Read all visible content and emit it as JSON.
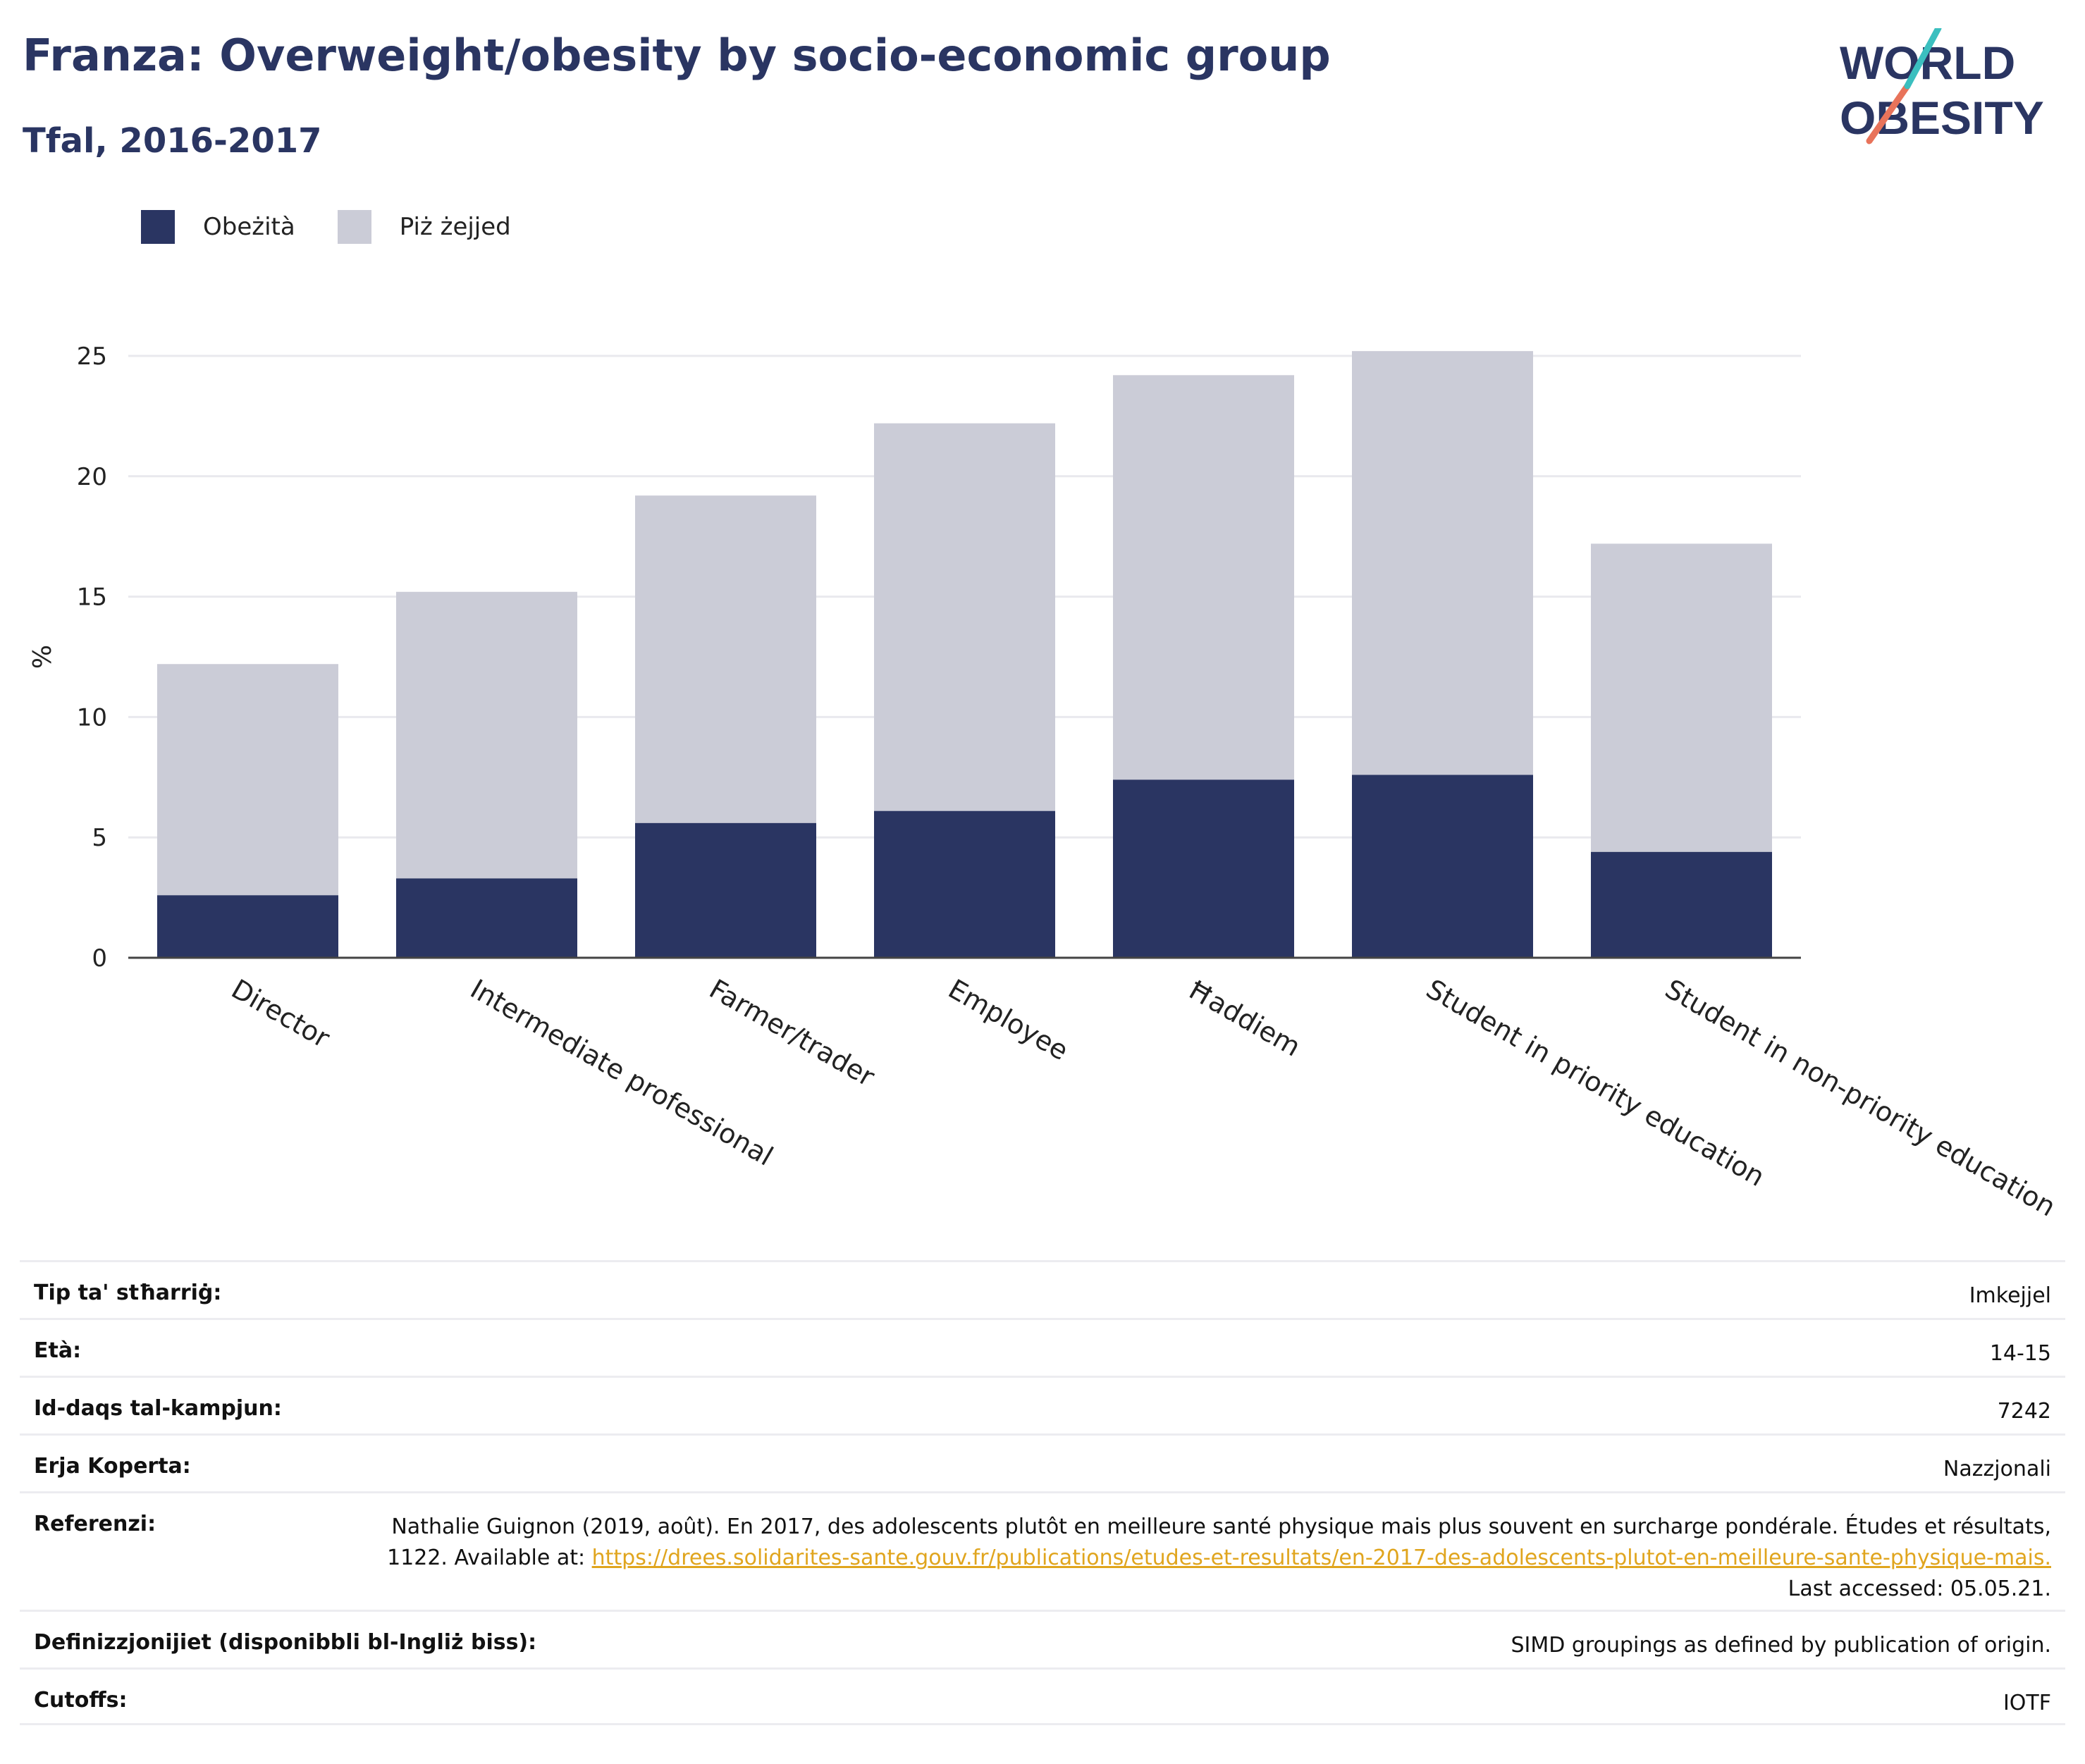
{
  "header": {
    "title": "Franza: Overweight/obesity by socio-economic group",
    "subtitle": "Tfal, 2016-2017"
  },
  "logo": {
    "line1": "WORLD",
    "line2": "OBESITY"
  },
  "colors": {
    "obesity": "#2a3562",
    "overweight": "#cbccd7",
    "title": "#2a3562",
    "link": "#e0a51e"
  },
  "chart_data": {
    "type": "bar",
    "stacked": true,
    "ylabel": "%",
    "ylim": [
      0,
      25
    ],
    "yticks": [
      0,
      5,
      10,
      15,
      20,
      25
    ],
    "grid": true,
    "legend_position": "top-left",
    "categories": [
      "Director",
      "Intermediate professional",
      "Farmer/trader",
      "Employee",
      "Ħaddiem",
      "Student in priority education",
      "Student in non-priority education"
    ],
    "series": [
      {
        "name": "Obeżità",
        "values": [
          2.6,
          3.3,
          5.6,
          6.1,
          7.4,
          7.6,
          4.4
        ]
      },
      {
        "name": "Piż żejjed",
        "values": [
          9.6,
          11.9,
          13.6,
          16.1,
          16.8,
          17.6,
          12.8
        ]
      }
    ]
  },
  "meta": {
    "survey_type": {
      "label": "Tip ta' stħarriġ:",
      "value": "Imkejjel"
    },
    "age": {
      "label": "Età:",
      "value": "14-15"
    },
    "sample_size": {
      "label": "Id-daqs tal-kampjun:",
      "value": "7242"
    },
    "area": {
      "label": "Erja Koperta:",
      "value": "Nazzjonali"
    },
    "references": {
      "label": "Referenzi:",
      "text_before": "Nathalie Guignon (2019, août). En 2017, des adolescents plutôt en meilleure santé physique mais plus souvent en surcharge pondérale. Études et résultats, 1122. Available at: ",
      "link": "https://drees.solidarites-sante.gouv.fr/publications/etudes-et-resultats/en-2017-des-adolescents-plutot-en-meilleure-sante-physique-mais.",
      "text_after": " Last accessed: 05.05.21."
    },
    "definitions": {
      "label": "Definizzjonijiet (disponibbli bl-Ingliż biss):",
      "value": "SIMD groupings as defined by publication of origin."
    },
    "cutoffs": {
      "label": "Cutoffs:",
      "value": "IOTF"
    }
  }
}
